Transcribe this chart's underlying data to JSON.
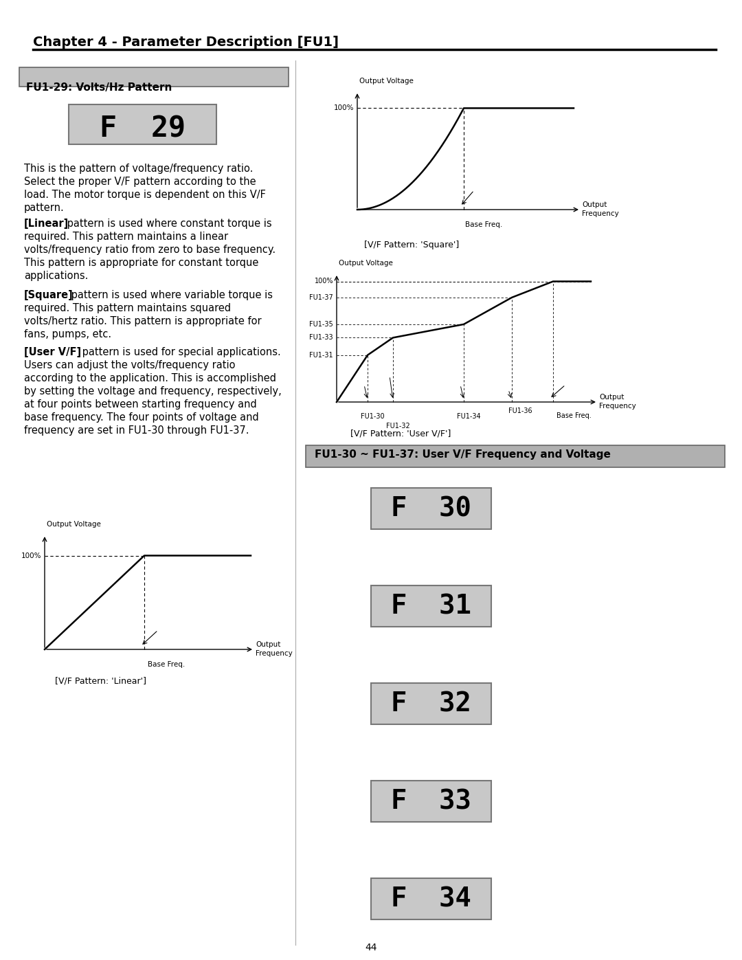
{
  "title": "Chapter 4 - Parameter Description [FU1]",
  "section1_title": "FU1-29: Volts/Hz Pattern",
  "section2_title": "FU1-30 ~ FU1-37: User V/F Frequency and Voltage",
  "display_F29": "F  29",
  "display_codes": [
    "F  30",
    "F  31",
    "F  32",
    "F  33",
    "F  34"
  ],
  "body_text": [
    "This is the pattern of voltage/frequency ratio.",
    "Select the proper V/F pattern according to the",
    "load. The motor torque is dependent on this V/F",
    "pattern."
  ],
  "linear_bold": "[Linear]",
  "linear_rest": " pattern is used where constant torque is",
  "linear_lines": [
    "required. This pattern maintains a linear",
    "volts/frequency ratio from zero to base frequency.",
    "This pattern is appropriate for constant torque",
    "applications."
  ],
  "square_bold": "[Square]",
  "square_rest": " pattern is used where variable torque is",
  "square_lines": [
    "required. This pattern maintains squared",
    "volts/hertz ratio. This pattern is appropriate for",
    "fans, pumps, etc."
  ],
  "uservf_bold": "[User V/F]",
  "uservf_rest": " pattern is used for special applications.",
  "uservf_lines": [
    "Users can adjust the volts/frequency ratio",
    "according to the application. This is accomplished",
    "by setting the voltage and frequency, respectively,",
    "at four points between starting frequency and",
    "base frequency. The four points of voltage and",
    "frequency are set in FU1-30 through FU1-37."
  ],
  "page_number": "44",
  "bg_color": "#ffffff",
  "header_bg": "#c0c0c0",
  "section2_bg": "#b0b0b0",
  "display_bg": "#c8c8c8",
  "body_font_size": 10.5,
  "title_font_size": 14,
  "section_font_size": 11
}
